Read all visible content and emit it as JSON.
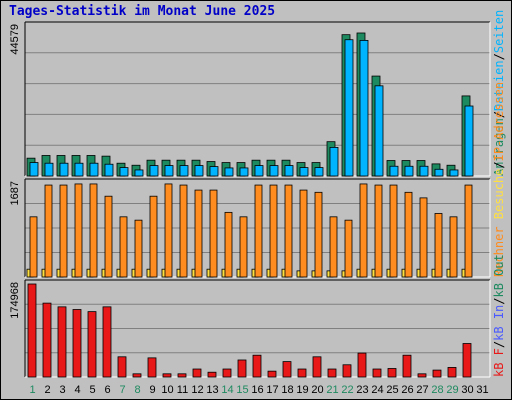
{
  "title": "Tages-Statistik im Monat June 2025",
  "colors": {
    "background": "#c0c0c0",
    "hits": "#1e8a60",
    "files": "#00b4ff",
    "sites": "#ff8c1e",
    "visits": "#ffe040",
    "kbF": "#e81818",
    "kbIn": "#4a5aff",
    "kbOut": "#1e8a60",
    "weekend": "#1e8a60"
  },
  "right_labels": {
    "panel1": [
      {
        "text": "Anfragen",
        "color": "#1e8a60"
      },
      {
        "text": "/",
        "color": "#000000"
      },
      {
        "text": "Dateien",
        "color": "#00b4ff"
      },
      {
        "text": "/",
        "color": "#000000"
      },
      {
        "text": "Seiten",
        "color": "#00b4ff"
      }
    ],
    "panel2": [
      {
        "text": "Besuche",
        "color": "#ffe040"
      },
      {
        "text": "/",
        "color": "#000000"
      },
      {
        "text": "IP-Adressen",
        "color": "#ff8c1e"
      }
    ],
    "panel2_extra": [
      {
        "text": "Rechner",
        "color": "#ff8c1e"
      }
    ],
    "panel3": [
      {
        "text": "kB F",
        "color": "#e81818"
      },
      {
        "text": "/",
        "color": "#000000"
      },
      {
        "text": "kB In",
        "color": "#4a5aff"
      },
      {
        "text": "/",
        "color": "#000000"
      },
      {
        "text": "kB Out",
        "color": "#1e8a60"
      }
    ]
  },
  "chart_data": {
    "type": "bar",
    "title": "Tages-Statistik im Monat June 2025",
    "days": [
      "1",
      "2",
      "3",
      "4",
      "5",
      "6",
      "7",
      "8",
      "9",
      "10",
      "11",
      "12",
      "13",
      "14",
      "15",
      "16",
      "17",
      "18",
      "19",
      "20",
      "21",
      "22",
      "23",
      "24",
      "25",
      "26",
      "27",
      "28",
      "29",
      "30",
      "31"
    ],
    "weekend_days": [
      1,
      7,
      8,
      14,
      15,
      21,
      22,
      28,
      29
    ],
    "panels": [
      {
        "name": "hits",
        "ymax": 44579,
        "ymax_label": "44579",
        "series": [
          {
            "name": "Anfragen",
            "color": "#1e8a60",
            "values": [
              5300,
              6100,
              6100,
              6100,
              6100,
              5900,
              3800,
              3200,
              4700,
              4700,
              4700,
              4700,
              4300,
              4000,
              4000,
              4700,
              4700,
              4700,
              4000,
              4000,
              10200,
              42000,
              42500,
              29700,
              4600,
              4600,
              4600,
              3600,
              3200,
              23800,
              0
            ]
          },
          {
            "name": "Dateien",
            "color": "#00b4ff",
            "values": [
              4000,
              3800,
              3800,
              3800,
              3800,
              3500,
              2500,
              1800,
              3100,
              3100,
              3100,
              3100,
              2800,
              2400,
              2400,
              3100,
              3100,
              3100,
              2500,
              2500,
              8500,
              40500,
              40300,
              26800,
              2900,
              2900,
              2900,
              2000,
              1800,
              20800,
              0
            ]
          },
          {
            "name": "Seiten",
            "color": "#00b4ff",
            "values": [
              0,
              0,
              0,
              0,
              0,
              0,
              0,
              0,
              0,
              0,
              0,
              0,
              0,
              0,
              0,
              0,
              0,
              0,
              0,
              0,
              0,
              0,
              0,
              0,
              0,
              0,
              0,
              0,
              0,
              0,
              0
            ]
          }
        ]
      },
      {
        "name": "sites",
        "ymax": 1687,
        "ymax_label": "1687",
        "series": [
          {
            "name": "Rechner",
            "color": "#ff8c1e",
            "values": [
              1080,
              1650,
              1650,
              1670,
              1670,
              1450,
              1080,
              1020,
              1450,
              1670,
              1650,
              1560,
              1560,
              1160,
              1080,
              1650,
              1650,
              1650,
              1560,
              1520,
              1080,
              1020,
              1670,
              1650,
              1650,
              1520,
              1420,
              1140,
              1080,
              1650,
              0
            ]
          },
          {
            "name": "Besuche",
            "color": "#ffe040",
            "values": [
              140,
              140,
              140,
              140,
              140,
              140,
              140,
              140,
              140,
              140,
              140,
              140,
              140,
              140,
              140,
              140,
              140,
              140,
              110,
              110,
              110,
              110,
              140,
              140,
              140,
              140,
              140,
              140,
              140,
              140,
              0
            ]
          }
        ]
      },
      {
        "name": "kb",
        "ymax": 174968,
        "ymax_label": "174968",
        "series": [
          {
            "name": "kB F",
            "color": "#e81818",
            "values": [
              174968,
              139000,
              132000,
              127000,
              123000,
              132000,
              38000,
              6000,
              36000,
              6000,
              6000,
              15000,
              9000,
              15000,
              32000,
              41000,
              11000,
              29000,
              15000,
              38000,
              15000,
              23000,
              45000,
              15000,
              16000,
              41000,
              6000,
              13000,
              18000,
              63000,
              0
            ]
          }
        ]
      }
    ]
  }
}
